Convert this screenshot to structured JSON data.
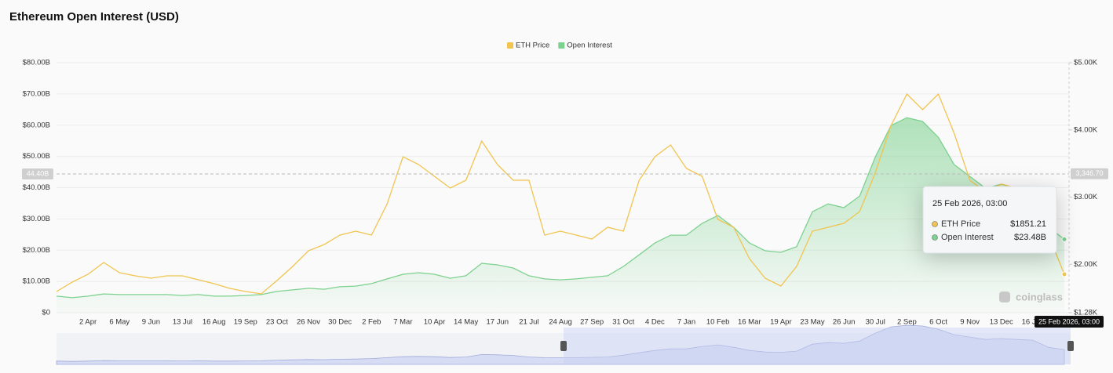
{
  "chart_data": {
    "type": "line",
    "title": "Ethereum Open Interest (USD)",
    "categories": [
      null,
      null,
      "2 Apr",
      null,
      "6 May",
      null,
      "9 Jun",
      null,
      "13 Jul",
      null,
      "16 Aug",
      null,
      "19 Sep",
      null,
      "23 Oct",
      null,
      "26 Nov",
      null,
      "30 Dec",
      null,
      "2 Feb",
      null,
      "7 Mar",
      null,
      "10 Apr",
      null,
      "14 May",
      null,
      "17 Jun",
      null,
      "21 Jul",
      null,
      "24 Aug",
      null,
      "27 Sep",
      null,
      "31 Oct",
      null,
      "4 Dec",
      null,
      "7 Jan",
      null,
      "10 Feb",
      null,
      "16 Mar",
      null,
      "19 Apr",
      null,
      "23 May",
      null,
      "26 Jun",
      null,
      "30 Jul",
      null,
      "2 Sep",
      null,
      "6 Oct",
      null,
      "9 Nov",
      null,
      "13 Dec",
      null,
      "16 Jan",
      null,
      null
    ],
    "series": [
      {
        "name": "ETH Price",
        "type": "line",
        "axis": "y2",
        "color": "#f0c44f",
        "values": [
          1595,
          1735,
          1851,
          2026,
          1875,
          1828,
          1793,
          1828,
          1828,
          1770,
          1711,
          1642,
          1595,
          1560,
          1758,
          1968,
          2201,
          2295,
          2435,
          2493,
          2435,
          2901,
          3601,
          3484,
          3309,
          3134,
          3251,
          3834,
          3484,
          3251,
          3251,
          2435,
          2493,
          2435,
          2376,
          2551,
          2493,
          3251,
          3601,
          3776,
          3426,
          3309,
          2668,
          2551,
          2085,
          1793,
          1676,
          1968,
          2493,
          2551,
          2609,
          2784,
          3367,
          4067,
          4534,
          4300,
          4534,
          3951,
          3251,
          3076,
          3193,
          3134,
          3134,
          2435,
          1851
        ]
      },
      {
        "name": "Open Interest",
        "type": "area",
        "color": "#7dd18f",
        "values": [
          5.3,
          4.8,
          5.3,
          6.0,
          5.8,
          5.8,
          5.8,
          5.8,
          5.5,
          5.8,
          5.3,
          5.3,
          5.5,
          5.8,
          6.8,
          7.3,
          7.8,
          7.5,
          8.3,
          8.5,
          9.3,
          10.8,
          12.3,
          12.8,
          12.3,
          11.0,
          11.8,
          15.8,
          15.3,
          14.3,
          11.8,
          10.8,
          10.5,
          10.8,
          11.3,
          11.8,
          14.8,
          18.5,
          22.3,
          24.8,
          24.8,
          28.6,
          31.1,
          27.3,
          22.3,
          19.8,
          19.3,
          21.1,
          32.3,
          34.8,
          33.6,
          37.3,
          49.9,
          59.9,
          62.4,
          61.2,
          56.1,
          47.4,
          43.6,
          39.8,
          41.1,
          39.8,
          38.6,
          27.3,
          23.5
        ]
      }
    ],
    "ylim": [
      0,
      80
    ],
    "yticks": [
      {
        "value": 0,
        "label": "$0"
      },
      {
        "value": 10,
        "label": "$10.00B"
      },
      {
        "value": 20,
        "label": "$20.00B"
      },
      {
        "value": 30,
        "label": "$30.00B"
      },
      {
        "value": 40,
        "label": "$40.00B"
      },
      {
        "value": 50,
        "label": "$50.00B"
      },
      {
        "value": 60,
        "label": "$60.00B"
      },
      {
        "value": 70,
        "label": "$70.00B"
      },
      {
        "value": 80,
        "label": "$80.00B"
      }
    ],
    "y2lim": [
      1280,
      5000
    ],
    "y2ticks": [
      {
        "value": 1280,
        "label": "$1.28K"
      },
      {
        "value": 2000,
        "label": "$2.00K"
      },
      {
        "value": 3000,
        "label": "$3.00K"
      },
      {
        "value": 4000,
        "label": "$4.00K"
      },
      {
        "value": 5000,
        "label": "$5.00K"
      }
    ],
    "grid": true,
    "legend": "top",
    "crosshair": {
      "y": {
        "value": 44.4,
        "label": "44.40B"
      },
      "y2": {
        "value": 3346.7,
        "label": "3,346.70"
      }
    },
    "tooltip": {
      "title": "25 Feb 2026, 03:00",
      "values": [
        1851.21,
        23.48
      ],
      "value_labels": [
        "$1851.21",
        "$23.48B"
      ]
    },
    "watermark": "coinglass"
  }
}
